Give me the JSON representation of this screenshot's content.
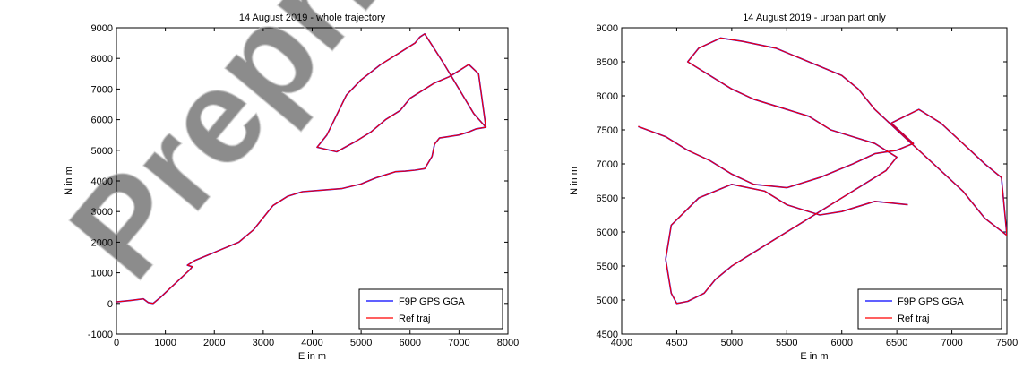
{
  "watermark": {
    "text": "Preprint"
  },
  "chart_data": [
    {
      "type": "line",
      "title": "14 August 2019 - whole trajectory",
      "xlabel": "E in m",
      "ylabel": "N in m",
      "xlim": [
        0,
        8000
      ],
      "ylim": [
        -1000,
        9000
      ],
      "xticks": [
        "0",
        "1000",
        "2000",
        "3000",
        "4000",
        "5000",
        "6000",
        "7000",
        "8000"
      ],
      "yticks": [
        "-1000",
        "0",
        "1000",
        "2000",
        "3000",
        "4000",
        "5000",
        "6000",
        "7000",
        "8000",
        "9000"
      ],
      "grid": false,
      "legend_position": "bottom-right",
      "series": [
        {
          "name": "F9P GPS GGA",
          "color": "#0000ff",
          "x": [
            0,
            300,
            550,
            650,
            750,
            900,
            1100,
            1300,
            1500,
            1550,
            1450,
            1600,
            1900,
            2200,
            2500,
            2800,
            3000,
            3200,
            3500,
            3800,
            4200,
            4600,
            5000,
            5300,
            5500,
            5700,
            5900,
            6100,
            6300,
            6450,
            6500,
            6600,
            6800,
            7000,
            7200,
            7350,
            7550,
            7300,
            7000,
            6700,
            6500,
            6300,
            6200,
            6100,
            5800,
            5400,
            5000,
            4700,
            4300,
            4100,
            4500,
            4900,
            5200,
            5500,
            5800,
            6000,
            6300,
            6500,
            6800,
            7000,
            7200,
            7400,
            7550
          ],
          "y": [
            50,
            100,
            150,
            30,
            0,
            200,
            500,
            800,
            1100,
            1200,
            1250,
            1400,
            1600,
            1800,
            2000,
            2400,
            2800,
            3200,
            3500,
            3650,
            3700,
            3750,
            3900,
            4100,
            4200,
            4300,
            4320,
            4350,
            4400,
            4800,
            5200,
            5400,
            5450,
            5500,
            5600,
            5700,
            5750,
            6200,
            7000,
            7800,
            8300,
            8800,
            8700,
            8500,
            8200,
            7800,
            7300,
            6800,
            5500,
            5100,
            4950,
            5300,
            5600,
            6000,
            6300,
            6700,
            7000,
            7200,
            7400,
            7600,
            7800,
            7500,
            5750
          ]
        },
        {
          "name": "Ref traj",
          "color": "#ff0000",
          "x": [
            0,
            300,
            550,
            650,
            750,
            900,
            1100,
            1300,
            1500,
            1550,
            1450,
            1600,
            1900,
            2200,
            2500,
            2800,
            3000,
            3200,
            3500,
            3800,
            4200,
            4600,
            5000,
            5300,
            5500,
            5700,
            5900,
            6100,
            6300,
            6450,
            6500,
            6600,
            6800,
            7000,
            7200,
            7350,
            7550,
            7300,
            7000,
            6700,
            6500,
            6300,
            6200,
            6100,
            5800,
            5400,
            5000,
            4700,
            4300,
            4100,
            4500,
            4900,
            5200,
            5500,
            5800,
            6000,
            6300,
            6500,
            6800,
            7000,
            7200,
            7400,
            7550
          ],
          "y": [
            50,
            100,
            150,
            30,
            0,
            200,
            500,
            800,
            1100,
            1200,
            1250,
            1400,
            1600,
            1800,
            2000,
            2400,
            2800,
            3200,
            3500,
            3650,
            3700,
            3750,
            3900,
            4100,
            4200,
            4300,
            4320,
            4350,
            4400,
            4800,
            5200,
            5400,
            5450,
            5500,
            5600,
            5700,
            5750,
            6200,
            7000,
            7800,
            8300,
            8800,
            8700,
            8500,
            8200,
            7800,
            7300,
            6800,
            5500,
            5100,
            4950,
            5300,
            5600,
            6000,
            6300,
            6700,
            7000,
            7200,
            7400,
            7600,
            7800,
            7500,
            5750
          ]
        }
      ]
    },
    {
      "type": "line",
      "title": "14 August 2019 - urban part only",
      "xlabel": "E in m",
      "ylabel": "N in m",
      "xlim": [
        4000,
        7500
      ],
      "ylim": [
        4500,
        9000
      ],
      "xticks": [
        "4000",
        "4500",
        "5000",
        "5500",
        "6000",
        "6500",
        "7000",
        "7500"
      ],
      "yticks": [
        "4500",
        "5000",
        "5500",
        "6000",
        "6500",
        "7000",
        "7500",
        "8000",
        "8500",
        "9000"
      ],
      "grid": false,
      "legend_position": "bottom-right",
      "series": [
        {
          "name": "F9P GPS GGA",
          "color": "#0000ff",
          "x": [
            4150,
            4400,
            4600,
            4800,
            5000,
            5200,
            5500,
            5800,
            6100,
            6300,
            6500,
            6650,
            6450,
            6700,
            6900,
            7100,
            7300,
            7450,
            7500,
            7300,
            7100,
            6900,
            6700,
            6500,
            6300,
            6150,
            6000,
            5700,
            5400,
            5100,
            4900,
            4700,
            4600,
            4800,
            5000,
            5200,
            5500,
            5700,
            5900,
            6100,
            6300,
            6500,
            6400,
            6200,
            6000,
            5800,
            5600,
            5400,
            5200,
            5000,
            4850,
            4750,
            4600,
            4500,
            4450,
            4400,
            4450,
            4700,
            5000,
            5300,
            5500,
            5800,
            6000,
            6300,
            6600
          ],
          "y": [
            7550,
            7400,
            7200,
            7050,
            6850,
            6700,
            6650,
            6800,
            7000,
            7150,
            7200,
            7300,
            7600,
            7800,
            7600,
            7300,
            7000,
            6800,
            5950,
            6200,
            6600,
            6900,
            7200,
            7500,
            7800,
            8100,
            8300,
            8500,
            8700,
            8800,
            8850,
            8700,
            8500,
            8300,
            8100,
            7950,
            7800,
            7700,
            7500,
            7400,
            7300,
            7100,
            6900,
            6700,
            6500,
            6300,
            6100,
            5900,
            5700,
            5500,
            5300,
            5100,
            4980,
            4950,
            5100,
            5600,
            6100,
            6500,
            6700,
            6600,
            6400,
            6250,
            6300,
            6450,
            6400
          ]
        },
        {
          "name": "Ref traj",
          "color": "#ff0000",
          "x": [
            4150,
            4400,
            4600,
            4800,
            5000,
            5200,
            5500,
            5800,
            6100,
            6300,
            6500,
            6650,
            6450,
            6700,
            6900,
            7100,
            7300,
            7450,
            7500,
            7300,
            7100,
            6900,
            6700,
            6500,
            6300,
            6150,
            6000,
            5700,
            5400,
            5100,
            4900,
            4700,
            4600,
            4800,
            5000,
            5200,
            5500,
            5700,
            5900,
            6100,
            6300,
            6500,
            6400,
            6200,
            6000,
            5800,
            5600,
            5400,
            5200,
            5000,
            4850,
            4750,
            4600,
            4500,
            4450,
            4400,
            4450,
            4700,
            5000,
            5300,
            5500,
            5800,
            6000,
            6300,
            6600
          ],
          "y": [
            7550,
            7400,
            7200,
            7050,
            6850,
            6700,
            6650,
            6800,
            7000,
            7150,
            7200,
            7300,
            7600,
            7800,
            7600,
            7300,
            7000,
            6800,
            5950,
            6200,
            6600,
            6900,
            7200,
            7500,
            7800,
            8100,
            8300,
            8500,
            8700,
            8800,
            8850,
            8700,
            8500,
            8300,
            8100,
            7950,
            7800,
            7700,
            7500,
            7400,
            7300,
            7100,
            6900,
            6700,
            6500,
            6300,
            6100,
            5900,
            5700,
            5500,
            5300,
            5100,
            4980,
            4950,
            5100,
            5600,
            6100,
            6500,
            6700,
            6600,
            6400,
            6250,
            6300,
            6450,
            6400
          ]
        }
      ]
    }
  ]
}
